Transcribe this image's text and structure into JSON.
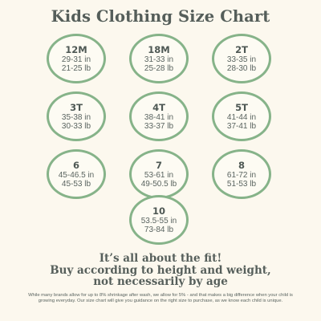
{
  "title": "Kids Clothing Size Chart",
  "sizes": [
    {
      "label": "12M",
      "height": "29-31 in",
      "weight": "21-25 lb"
    },
    {
      "label": "18M",
      "height": "31-33 in",
      "weight": "25-28 lb"
    },
    {
      "label": "2T",
      "height": "33-35 in",
      "weight": "28-30 lb"
    },
    {
      "label": "3T",
      "height": "35-38 in",
      "weight": "30-33 lb"
    },
    {
      "label": "4T",
      "height": "38-41 in",
      "weight": "33-37 lb"
    },
    {
      "label": "5T",
      "height": "41-44 in",
      "weight": "37-41 lb"
    },
    {
      "label": "6",
      "height": "45-46.5 in",
      "weight": "45-53 lb"
    },
    {
      "label": "7",
      "height": "53-61 in",
      "weight": "49-50.5 lb"
    },
    {
      "label": "8",
      "height": "61-72 in",
      "weight": "51-53 lb"
    },
    {
      "label": "10",
      "height": "53.5-55 in",
      "weight": "73-84 lb"
    }
  ],
  "fit_message": {
    "line1": "It’s all about the fit!",
    "line2": "Buy according to height and weight,",
    "line3": "not necessarily by age"
  },
  "footnote": "While many brands allow for up to 8% shrinkage after wash, we allow for 5% - and that makes a big difference when your child is growing everyday. Our size chart will give you guidance on the right size to purchase, as we know each child is unique.",
  "colors": {
    "background": "#fcf8ee",
    "circle_border": "#86b389",
    "text": "#555e5a"
  }
}
